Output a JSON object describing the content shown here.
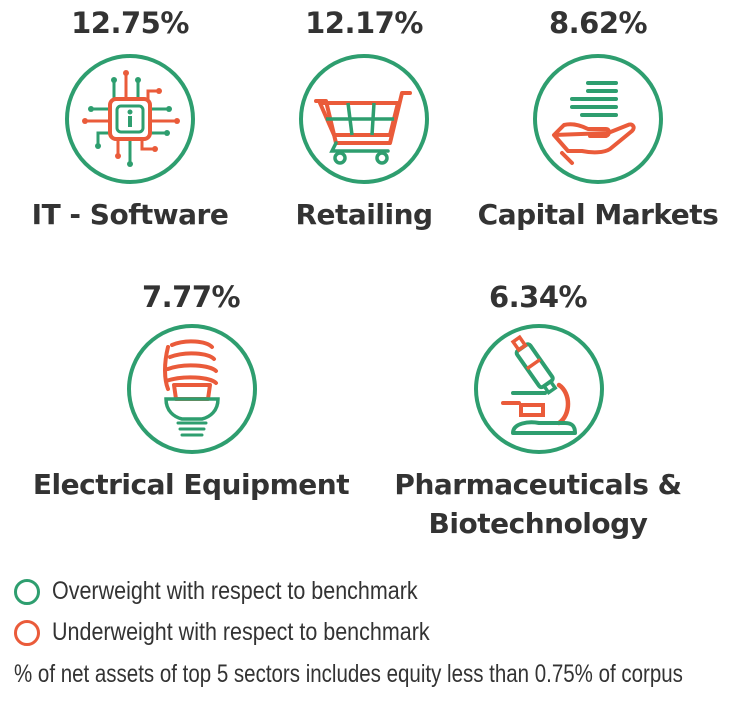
{
  "colors": {
    "overweight": "#2e9e6f",
    "underweight": "#ea5b3a",
    "text": "#333333"
  },
  "sectors": [
    {
      "label": "IT - Software",
      "percent": "12.75%",
      "stance": "overweight",
      "icon": "microchip-icon"
    },
    {
      "label": "Retailing",
      "percent": "12.17%",
      "stance": "overweight",
      "icon": "shopping-cart-icon"
    },
    {
      "label": "Capital Markets",
      "percent": "8.62%",
      "stance": "overweight",
      "icon": "coins-in-hand-icon"
    },
    {
      "label": "Electrical Equipment",
      "percent": "7.77%",
      "stance": "overweight",
      "icon": "light-bulb-icon"
    },
    {
      "label_line1": "Pharmaceuticals &",
      "label_line2": "Biotechnology",
      "percent": "6.34%",
      "stance": "overweight",
      "icon": "microscope-icon"
    }
  ],
  "legend": {
    "overweight": "Overweight with respect to benchmark",
    "underweight": "Underweight with respect to benchmark"
  },
  "note": "% of net assets of top 5 sectors includes equity less than 0.75% of corpus"
}
